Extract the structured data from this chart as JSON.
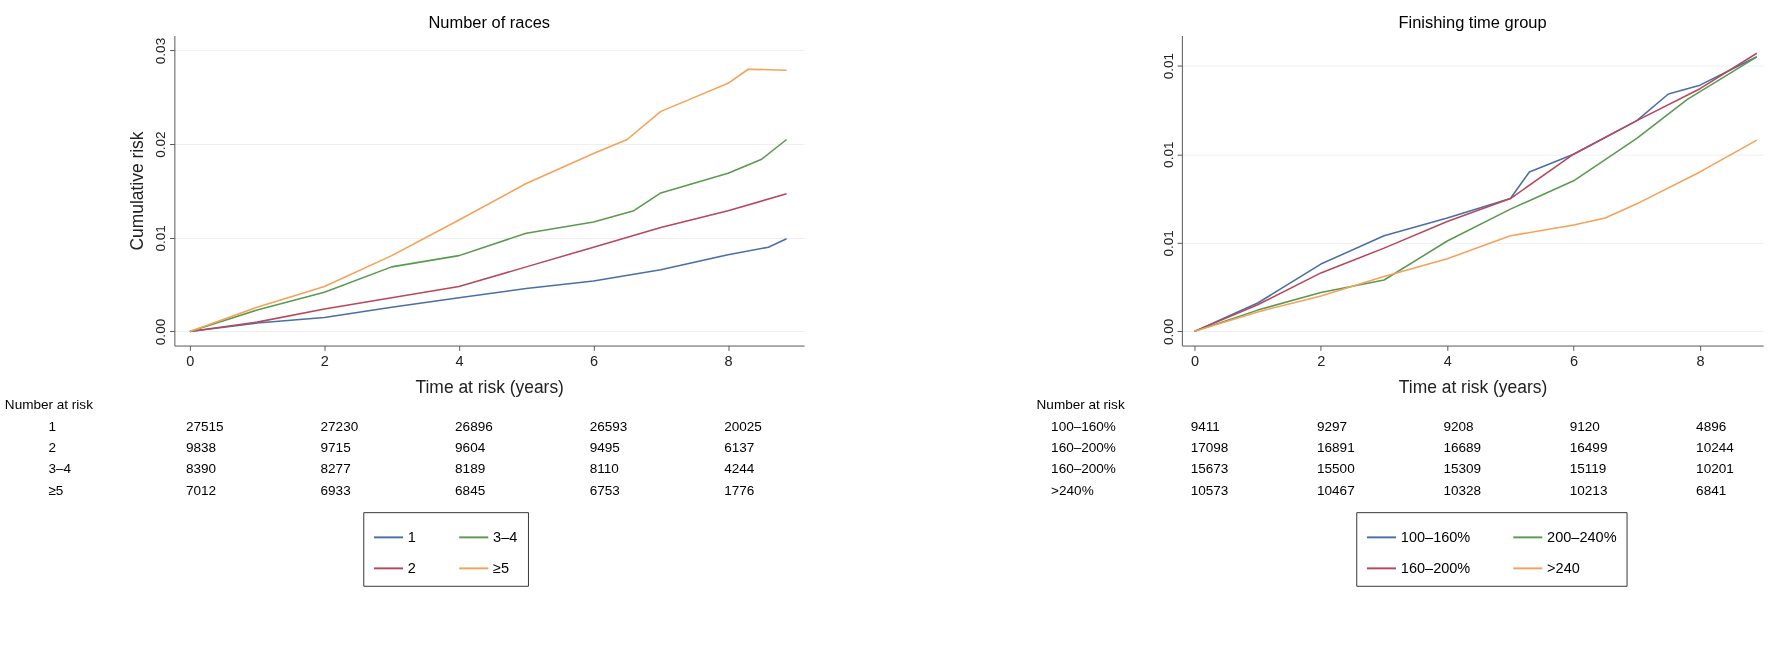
{
  "chart_data": [
    {
      "type": "line",
      "title": "Number of races",
      "xlabel": "Time at risk (years)",
      "ylabel": "Cumulative risk",
      "xlim": [
        -0.23,
        9.13
      ],
      "ylim": [
        -0.0015,
        0.0316
      ],
      "xticks": [
        0,
        2,
        4,
        6,
        8
      ],
      "yticks": [
        {
          "value": 0,
          "label": "0.00"
        },
        {
          "value": 0.01,
          "label": "0.01"
        },
        {
          "value": 0.02,
          "label": "0.02"
        },
        {
          "value": 0.03,
          "label": "0.03"
        }
      ],
      "grid": "y",
      "legend": "bottom",
      "series": [
        {
          "name": "1",
          "color": "#4a6fa5",
          "x": [
            0,
            1,
            2,
            3,
            4,
            5,
            6,
            7,
            8,
            8.6,
            8.87
          ],
          "values": [
            0,
            0.0009,
            0.0015,
            0.0026,
            0.0036,
            0.0046,
            0.0054,
            0.0066,
            0.0082,
            0.009,
            0.0099
          ]
        },
        {
          "name": "2",
          "color": "#b5495b",
          "x": [
            0,
            1,
            2,
            3,
            4,
            5,
            6,
            7,
            8,
            8.87
          ],
          "values": [
            0,
            0.001,
            0.0024,
            0.0036,
            0.0048,
            0.0069,
            0.009,
            0.0111,
            0.0129,
            0.0147
          ]
        },
        {
          "name": "3–4",
          "color": "#5a9a4e",
          "x": [
            0,
            1,
            2,
            3,
            4,
            5,
            6,
            6.6,
            7,
            8,
            8.5,
            8.87
          ],
          "values": [
            0,
            0.0023,
            0.0042,
            0.0069,
            0.0081,
            0.0105,
            0.0117,
            0.0129,
            0.0148,
            0.0169,
            0.0184,
            0.0205
          ]
        },
        {
          "name": "≥5",
          "color": "#f4a259",
          "x": [
            0,
            1,
            2,
            3,
            4,
            5,
            6,
            6.5,
            7,
            7.5,
            8,
            8.3,
            8.87
          ],
          "values": [
            0,
            0.0026,
            0.0048,
            0.0081,
            0.0119,
            0.0158,
            0.019,
            0.0205,
            0.0235,
            0.025,
            0.0265,
            0.028,
            0.0279
          ]
        }
      ],
      "annotations": [
        "Number at risk",
        "1",
        "27515",
        "27230",
        "26896",
        "26593",
        "20025",
        "2",
        "9838",
        "9715",
        "9604",
        "9495",
        "6137",
        "3–4",
        "8390",
        "8277",
        "8189",
        "8110",
        "4244",
        "≥5",
        "7012",
        "6933",
        "6845",
        "6753",
        "1776"
      ]
    },
    {
      "type": "line",
      "title": "Finishing time group",
      "xlabel": "Time at risk (years)",
      "xlim": [
        -0.2,
        9.0
      ],
      "ylim": [
        -0.0008,
        0.0167
      ],
      "xticks": [
        0,
        2,
        4,
        6,
        8
      ],
      "yticks": [
        {
          "value": 0,
          "label": "0.00"
        },
        {
          "value": 0.005,
          "label": "0.01"
        },
        {
          "value": 0.01,
          "label": "0.01"
        },
        {
          "value": 0.015,
          "label": "0.01"
        }
      ],
      "grid": "y",
      "legend": "bottom",
      "series": [
        {
          "name": "100–160%",
          "color": "#4a6fa5",
          "x": [
            0,
            1,
            2,
            3,
            4,
            5,
            5.3,
            6,
            7,
            7.5,
            8,
            8.9
          ],
          "values": [
            0,
            0.0016,
            0.0038,
            0.0054,
            0.0064,
            0.0075,
            0.009,
            0.01,
            0.0119,
            0.0134,
            0.0139,
            0.0155
          ]
        },
        {
          "name": "160–200%",
          "color": "#b5495b",
          "x": [
            0,
            1,
            2,
            3,
            4,
            5,
            6,
            7,
            8,
            8.9
          ],
          "values": [
            0,
            0.0015,
            0.0033,
            0.0047,
            0.0062,
            0.0075,
            0.01,
            0.0119,
            0.0137,
            0.0157
          ]
        },
        {
          "name": "200–240%",
          "color": "#5a9a4e",
          "x": [
            0,
            1,
            2,
            3,
            4,
            5,
            6,
            7,
            7.8,
            8.9
          ],
          "values": [
            0,
            0.0012,
            0.0022,
            0.0029,
            0.0051,
            0.0069,
            0.0085,
            0.0109,
            0.0131,
            0.0155
          ]
        },
        {
          "name": ">240",
          "color": "#f4a259",
          "x": [
            0,
            1,
            2,
            3,
            4,
            5,
            6,
            6.5,
            7,
            8,
            8.9
          ],
          "values": [
            0,
            0.0011,
            0.002,
            0.0031,
            0.0041,
            0.0054,
            0.006,
            0.0064,
            0.0072,
            0.009,
            0.0108
          ]
        }
      ],
      "annotations": [
        "Number at risk",
        "100–160%",
        "9411",
        "9297",
        "9208",
        "9120",
        "4896",
        "160–200%",
        "17098",
        "16891",
        "16689",
        "16499",
        "10244",
        "160–200%",
        "15673",
        "15500",
        "15309",
        "15119",
        "10201",
        ">240%",
        "10573",
        "10467",
        "10328",
        "10213",
        "6841"
      ]
    }
  ]
}
